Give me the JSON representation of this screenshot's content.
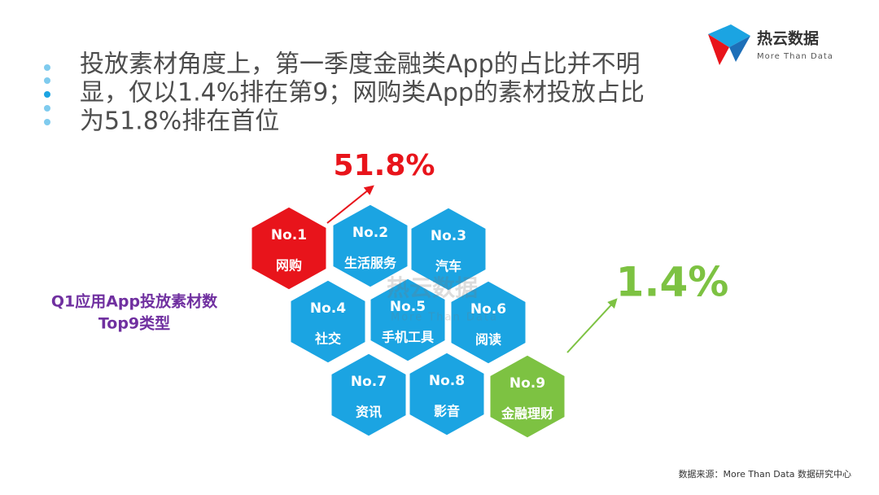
{
  "logo": {
    "name": "热云数据",
    "tagline": "More Than Data"
  },
  "headline": [
    "投放素材角度上，第一季度金融类App的占比并不明",
    "显，仅以1.4%排在第9；网购类App的素材投放占比",
    "为51.8%排在首位"
  ],
  "side_label": [
    "Q1应用App投放素材数",
    "Top9类型"
  ],
  "callouts": [
    {
      "text": "51.8%",
      "color": "#e8141b"
    },
    {
      "text": "1.4%",
      "color": "#7dc242"
    }
  ],
  "hexagons": [
    {
      "rank": "No.1",
      "label": "网购",
      "color": "#e8141b"
    },
    {
      "rank": "No.2",
      "label": "生活服务",
      "color": "#1ba4e2"
    },
    {
      "rank": "No.3",
      "label": "汽车",
      "color": "#1ba4e2"
    },
    {
      "rank": "No.4",
      "label": "社交",
      "color": "#1ba4e2"
    },
    {
      "rank": "No.5",
      "label": "手机工具",
      "color": "#1ba4e2"
    },
    {
      "rank": "No.6",
      "label": "阅读",
      "color": "#1ba4e2"
    },
    {
      "rank": "No.7",
      "label": "资讯",
      "color": "#1ba4e2"
    },
    {
      "rank": "No.8",
      "label": "影音",
      "color": "#1ba4e2"
    },
    {
      "rank": "No.9",
      "label": "金融理财",
      "color": "#7dc242"
    }
  ],
  "watermark": {
    "name": "热云数据",
    "tagline": "More Than Data"
  },
  "source": "数据来源：More Than Data 数据研究中心"
}
